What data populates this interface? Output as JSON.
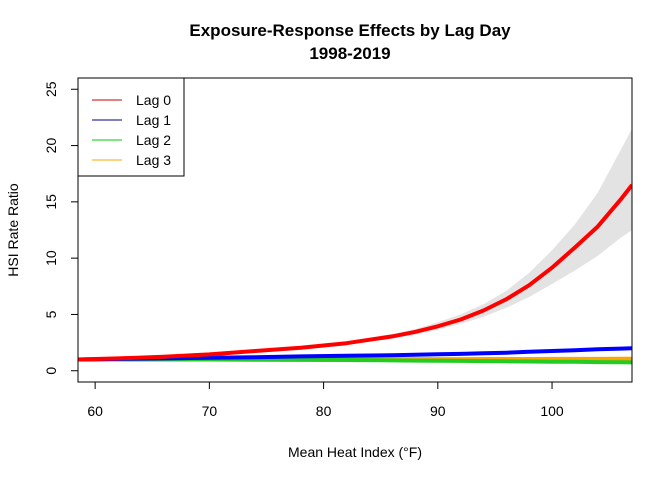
{
  "chart_data": {
    "type": "line",
    "title": "Exposure-Response Effects by Lag Day",
    "subtitle": "1998-2019",
    "xlabel": "Mean Heat Index (°F)",
    "ylabel": "HSI Rate Ratio",
    "xlim": [
      58.5,
      107
    ],
    "ylim": [
      -1,
      26
    ],
    "xticks": [
      "60",
      "70",
      "80",
      "90",
      "100"
    ],
    "yticks": [
      "0",
      "5",
      "10",
      "15",
      "20",
      "25"
    ],
    "xtick_values": [
      60,
      70,
      80,
      90,
      100
    ],
    "ytick_values": [
      0,
      5,
      10,
      15,
      20,
      25
    ],
    "grid": false,
    "legend_position": "top-left",
    "x": [
      58.5,
      62,
      66,
      70,
      74,
      78,
      82,
      86,
      88,
      90,
      92,
      94,
      96,
      98,
      100,
      102,
      104,
      106,
      107
    ],
    "series": [
      {
        "name": "Lag 0",
        "color": "#ff0000",
        "legend_color": "#cc0000",
        "values": [
          1.0,
          1.1,
          1.25,
          1.45,
          1.75,
          2.05,
          2.45,
          3.05,
          3.45,
          3.95,
          4.55,
          5.35,
          6.35,
          7.6,
          9.15,
          10.95,
          12.8,
          15.2,
          16.5
        ]
      },
      {
        "name": "Lag 1",
        "color": "#0000ff",
        "legend_color": "#000080",
        "values": [
          1.0,
          1.05,
          1.1,
          1.15,
          1.2,
          1.27,
          1.33,
          1.38,
          1.42,
          1.46,
          1.5,
          1.55,
          1.6,
          1.68,
          1.75,
          1.82,
          1.9,
          1.97,
          2.0
        ]
      },
      {
        "name": "Lag 2",
        "color": "#22cc22",
        "legend_color": "#00cc00",
        "values": [
          1.0,
          1.0,
          1.0,
          1.0,
          0.98,
          0.96,
          0.95,
          0.92,
          0.9,
          0.88,
          0.87,
          0.86,
          0.84,
          0.82,
          0.8,
          0.79,
          0.77,
          0.75,
          0.74
        ]
      },
      {
        "name": "Lag 3",
        "color": "#ffa500",
        "legend_color": "#ffa500",
        "values": [
          1.0,
          1.0,
          1.0,
          1.01,
          1.01,
          1.02,
          1.02,
          1.02,
          1.03,
          1.03,
          1.03,
          1.04,
          1.04,
          1.04,
          1.05,
          1.05,
          1.05,
          1.06,
          1.06
        ]
      }
    ],
    "confidence_band": {
      "series": "Lag 0",
      "color": "#e3e3e3",
      "lower": [
        1.0,
        1.08,
        1.22,
        1.4,
        1.68,
        1.95,
        2.3,
        2.85,
        3.2,
        3.65,
        4.15,
        4.8,
        5.6,
        6.55,
        7.7,
        8.9,
        10.2,
        11.8,
        12.5
      ],
      "upper": [
        1.0,
        1.12,
        1.28,
        1.5,
        1.82,
        2.15,
        2.6,
        3.25,
        3.7,
        4.3,
        5.0,
        5.9,
        7.1,
        8.7,
        10.7,
        13.0,
        15.8,
        19.6,
        21.5
      ]
    }
  }
}
